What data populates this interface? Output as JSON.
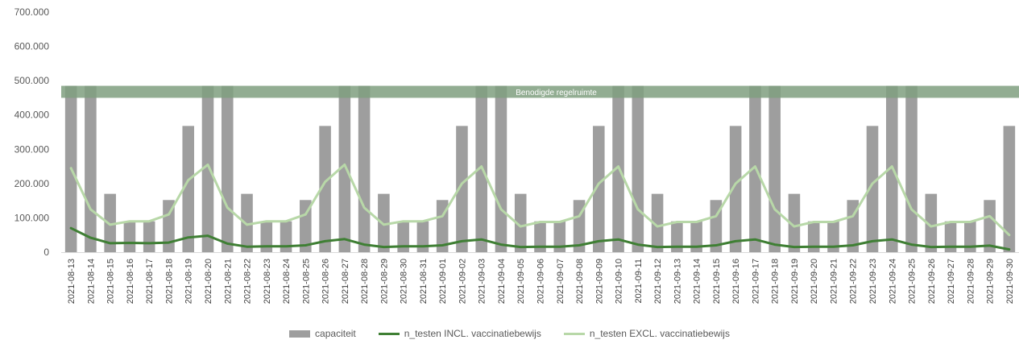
{
  "chart_data": {
    "type": "bar",
    "title": "",
    "xlabel": "",
    "ylabel": "",
    "ylim": [
      0,
      700000
    ],
    "yticks": [
      "0",
      "100.000",
      "200.000",
      "300.000",
      "400.000",
      "500.000",
      "600.000",
      "700.000"
    ],
    "grid": false,
    "legend_position": "bottom",
    "band": {
      "label": "Benodigde regelruimte",
      "from": 450000,
      "to": 485000,
      "color": "#7f9f7f"
    },
    "categories": [
      "2021-08-13",
      "2021-08-14",
      "2021-08-15",
      "2021-08-16",
      "2021-08-17",
      "2021-08-18",
      "2021-08-19",
      "2021-08-20",
      "2021-08-21",
      "2021-08-22",
      "2021-08-23",
      "2021-08-24",
      "2021-08-25",
      "2021-08-26",
      "2021-08-27",
      "2021-08-28",
      "2021-08-29",
      "2021-08-30",
      "2021-08-31",
      "2021-09-01",
      "2021-09-02",
      "2021-09-03",
      "2021-09-04",
      "2021-09-05",
      "2021-09-06",
      "2021-09-07",
      "2021-09-08",
      "2021-09-09",
      "2021-09-10",
      "2021-09-11",
      "2021-09-12",
      "2021-09-13",
      "2021-09-14",
      "2021-09-15",
      "2021-09-16",
      "2021-09-17",
      "2021-09-18",
      "2021-09-19",
      "2021-09-20",
      "2021-09-21",
      "2021-09-22",
      "2021-09-23",
      "2021-09-24",
      "2021-09-25",
      "2021-09-26",
      "2021-09-27",
      "2021-09-28",
      "2021-09-29",
      "2021-09-30"
    ],
    "series": [
      {
        "name": "capaciteit",
        "kind": "bar",
        "color": "#9e9e9e",
        "values": [
          485000,
          485000,
          170000,
          90000,
          90000,
          152000,
          368000,
          485000,
          485000,
          170000,
          90000,
          90000,
          152000,
          368000,
          485000,
          485000,
          170000,
          90000,
          90000,
          152000,
          368000,
          485000,
          485000,
          170000,
          90000,
          90000,
          152000,
          368000,
          485000,
          485000,
          170000,
          90000,
          90000,
          152000,
          368000,
          485000,
          485000,
          170000,
          90000,
          90000,
          152000,
          368000,
          485000,
          485000,
          170000,
          90000,
          90000,
          152000,
          368000
        ]
      },
      {
        "name": "n_testen INCL. vaccinatiebewijs",
        "kind": "line",
        "color": "#3f7f34",
        "values": [
          70000,
          42000,
          26000,
          27000,
          26000,
          28000,
          43000,
          48000,
          25000,
          16000,
          17000,
          17000,
          20000,
          32000,
          38000,
          22000,
          15000,
          17000,
          17000,
          20000,
          32000,
          37000,
          22000,
          15000,
          16000,
          16000,
          20000,
          32000,
          37000,
          22000,
          15000,
          16000,
          16000,
          20000,
          32000,
          37000,
          22000,
          15000,
          16000,
          16000,
          20000,
          32000,
          37000,
          22000,
          15000,
          16000,
          16000,
          19000,
          8000
        ]
      },
      {
        "name": "n_testen EXCL. vaccinatiebewijs",
        "kind": "line",
        "color": "#b8d8a8",
        "values": [
          245000,
          125000,
          80000,
          90000,
          90000,
          110000,
          210000,
          255000,
          130000,
          80000,
          90000,
          90000,
          110000,
          205000,
          255000,
          130000,
          80000,
          90000,
          90000,
          105000,
          200000,
          250000,
          125000,
          75000,
          88000,
          88000,
          105000,
          200000,
          250000,
          125000,
          75000,
          88000,
          88000,
          105000,
          200000,
          250000,
          125000,
          75000,
          88000,
          88000,
          105000,
          200000,
          250000,
          125000,
          75000,
          88000,
          88000,
          105000,
          50000
        ]
      }
    ]
  }
}
